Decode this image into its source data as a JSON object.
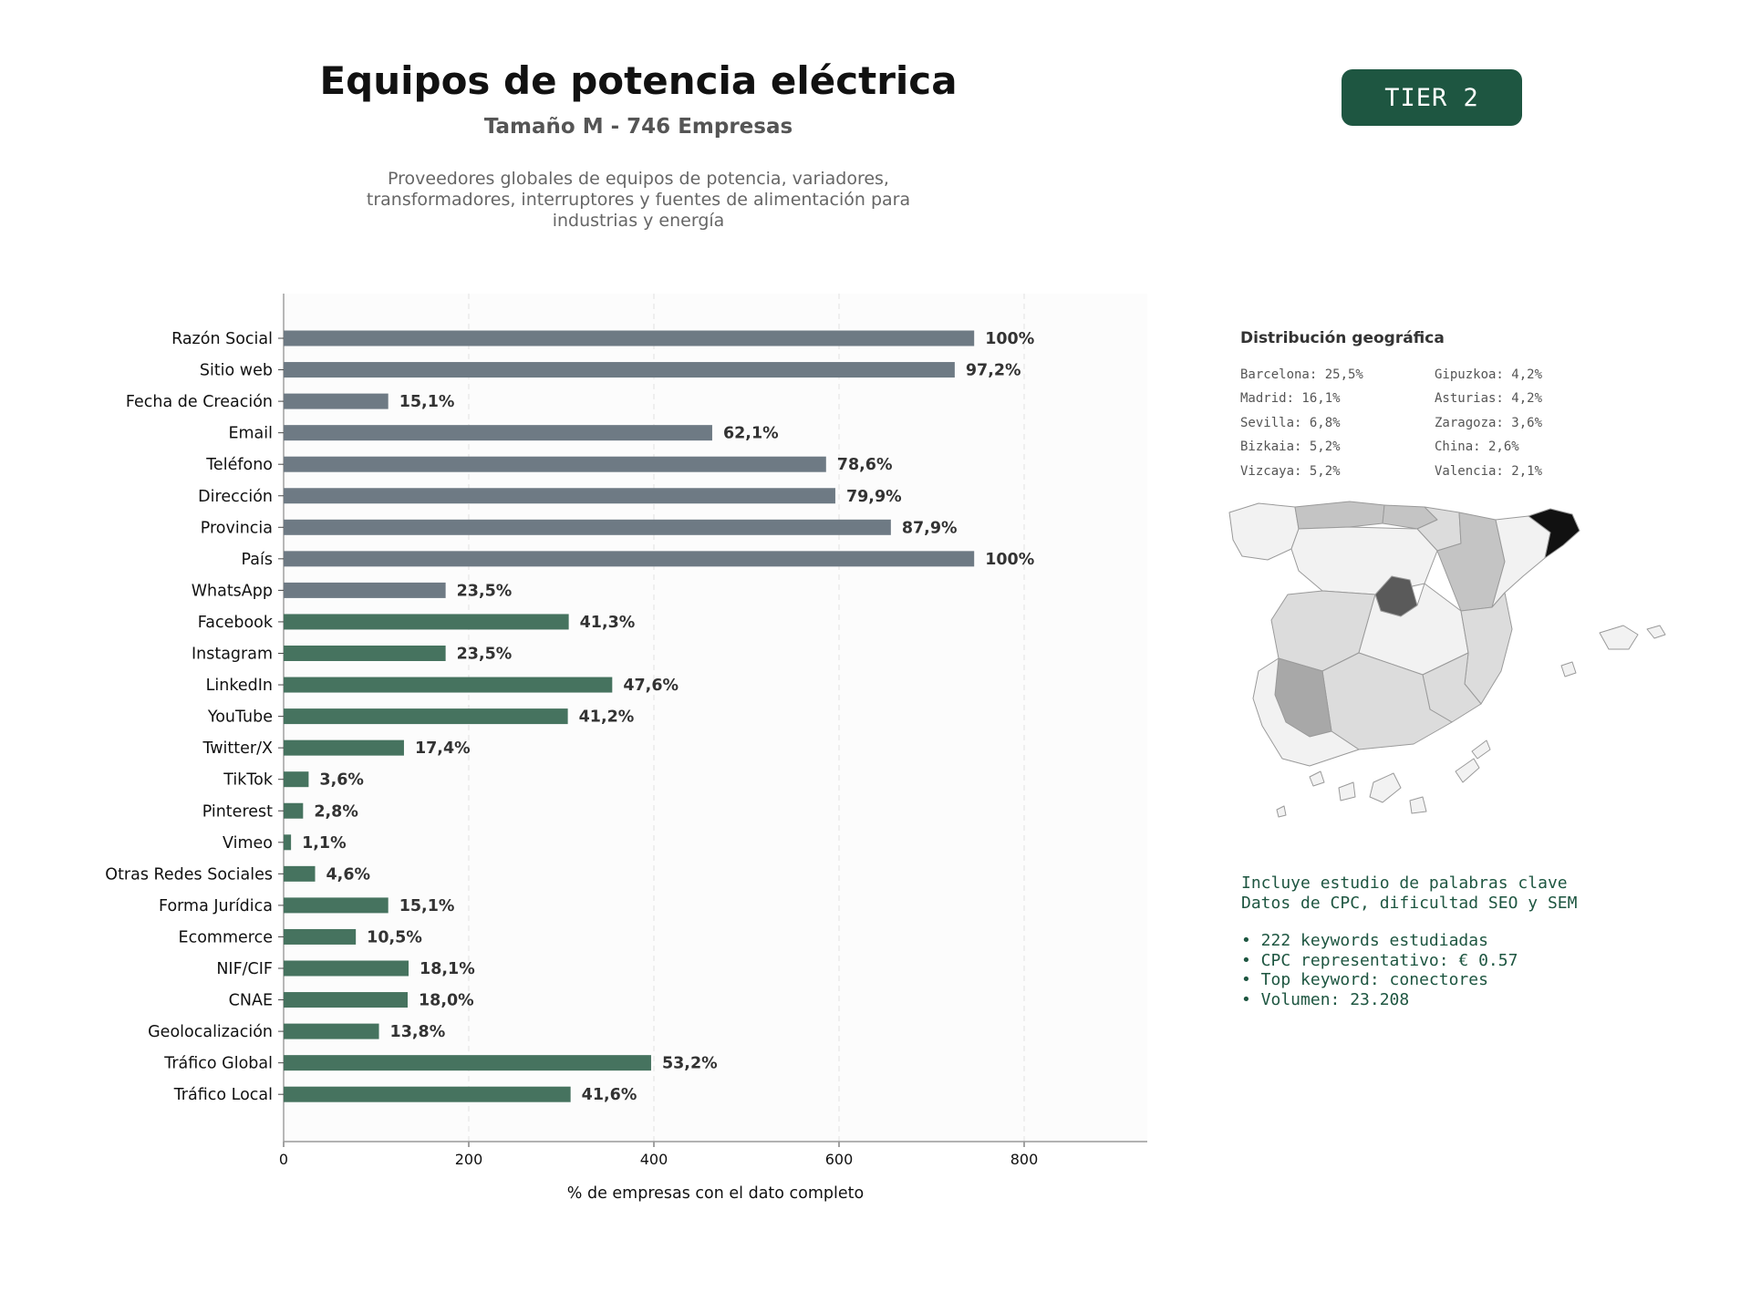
{
  "header": {
    "title": "Equipos de potencia eléctrica",
    "subtitle": "Tamaño M - 746 Empresas",
    "description_lines": [
      "Proveedores globales de equipos de potencia, variadores,",
      "transformadores, interruptores y fuentes de alimentación para",
      "industrias y energía"
    ],
    "tier_label": "TIER 2"
  },
  "chart_data": {
    "type": "bar",
    "orientation": "horizontal",
    "title": "",
    "xlabel": "% de empresas con el dato completo",
    "ylabel": "",
    "xlim": [
      0,
      933
    ],
    "xticks": [
      0,
      200,
      400,
      600,
      800
    ],
    "grid": true,
    "colors": {
      "contact": "#6e7a84",
      "digital": "#46735f"
    },
    "categories": [
      "Razón Social",
      "Sitio web",
      "Fecha de Creación",
      "Email",
      "Teléfono",
      "Dirección",
      "Provincia",
      "País",
      "WhatsApp",
      "Facebook",
      "Instagram",
      "LinkedIn",
      "YouTube",
      "Twitter/X",
      "TikTok",
      "Pinterest",
      "Vimeo",
      "Otras Redes Sociales",
      "Forma Jurídica",
      "Ecommerce",
      "NIF/CIF",
      "CNAE",
      "Geolocalización",
      "Tráfico Global",
      "Tráfico Local"
    ],
    "values": [
      746,
      725,
      113,
      463,
      586,
      596,
      656,
      746,
      175,
      308,
      175,
      355,
      307,
      130,
      27,
      21,
      8,
      34,
      113,
      78,
      135,
      134,
      103,
      397,
      310
    ],
    "labels": [
      "100%",
      "97,2%",
      "15,1%",
      "62,1%",
      "78,6%",
      "79,9%",
      "87,9%",
      "100%",
      "23,5%",
      "41,3%",
      "23,5%",
      "47,6%",
      "41,2%",
      "17,4%",
      "3,6%",
      "2,8%",
      "1,1%",
      "4,6%",
      "15,1%",
      "10,5%",
      "18,1%",
      "18,0%",
      "13,8%",
      "53,2%",
      "41,6%"
    ],
    "groups": [
      "contact",
      "contact",
      "contact",
      "contact",
      "contact",
      "contact",
      "contact",
      "contact",
      "contact",
      "digital",
      "digital",
      "digital",
      "digital",
      "digital",
      "digital",
      "digital",
      "digital",
      "digital",
      "digital",
      "digital",
      "digital",
      "digital",
      "digital",
      "digital",
      "digital"
    ]
  },
  "geo": {
    "title": "Distribución geográfica",
    "col1": [
      "Barcelona: 25,5%",
      "Madrid: 16,1%",
      "Sevilla: 6,8%",
      "Bizkaia: 5,2%",
      "Vizcaya: 5,2%"
    ],
    "col2": [
      "Gipuzkoa: 4,2%",
      "Asturias: 4,2%",
      "Zaragoza: 3,6%",
      "China: 2,6%",
      "Valencia: 2,1%"
    ],
    "map_colors": {
      "barcelona": "#111111",
      "madrid": "#5a5a5a",
      "sevilla": "#a8a8a8",
      "north": "#c4c4c4",
      "mid": "#dcdcdc",
      "light": "#f2f2f2",
      "border": "#9a9a9a"
    }
  },
  "keywords": {
    "line1": "Incluye estudio de palabras clave",
    "line2": "Datos de CPC, dificultad SEO y SEM",
    "bullets": [
      "• 222 keywords estudiadas",
      "• CPC representativo: € 0.57",
      "• Top keyword: conectores",
      "• Volumen: 23.208"
    ]
  }
}
